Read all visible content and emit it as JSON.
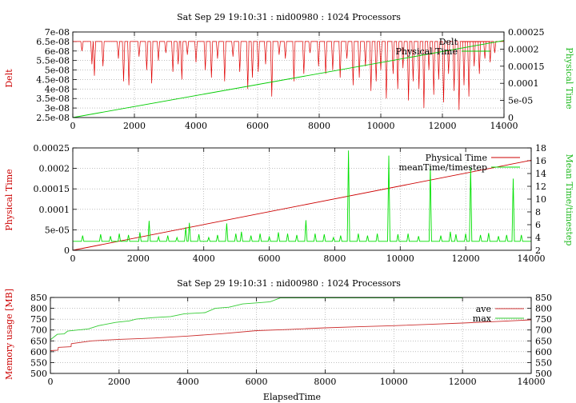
{
  "chart_data": [
    {
      "type": "line",
      "title": "Sat Sep 29 19:10:31 : nid00980 : 1024 Processors",
      "xlabel": "",
      "ylabel_left": "Delt",
      "ylabel_right": "Physical Time",
      "xlim": [
        0,
        14000
      ],
      "ylim_left": [
        2.5e-08,
        7e-08
      ],
      "ylim_right": [
        0,
        0.00025
      ],
      "xticks": [
        "0",
        "2000",
        "4000",
        "6000",
        "8000",
        "10000",
        "12000",
        "14000"
      ],
      "yticks_left": [
        "2.5e-08",
        "3e-08",
        "3.5e-08",
        "4e-08",
        "4.5e-08",
        "5e-08",
        "5.5e-08",
        "6e-08",
        "6.5e-08",
        "7e-08"
      ],
      "yticks_right": [
        "0",
        "5e-05",
        "0.0001",
        "0.00015",
        "0.0002",
        "0.00025"
      ],
      "grid": true,
      "legend": "top-right",
      "series": [
        {
          "name": "Delt",
          "color": "#e00000",
          "axis": "left",
          "baseline": 6.5e-08,
          "x_end": 14000,
          "dips": [
            [
              300,
              6e-08
            ],
            [
              620,
              5.3e-08
            ],
            [
              700,
              4.7e-08
            ],
            [
              980,
              5.2e-08
            ],
            [
              1480,
              5.6e-08
            ],
            [
              1650,
              4.4e-08
            ],
            [
              1820,
              4.2e-08
            ],
            [
              2150,
              5.7e-08
            ],
            [
              2400,
              5e-08
            ],
            [
              2560,
              4.3e-08
            ],
            [
              2780,
              5.5e-08
            ],
            [
              3020,
              5.9e-08
            ],
            [
              3250,
              4.9e-08
            ],
            [
              3420,
              5.3e-08
            ],
            [
              3540,
              4.5e-08
            ],
            [
              3720,
              5.8e-08
            ],
            [
              4000,
              5.4e-08
            ],
            [
              4300,
              5e-08
            ],
            [
              4500,
              4.6e-08
            ],
            [
              4700,
              5.6e-08
            ],
            [
              4930,
              4.4e-08
            ],
            [
              5200,
              5.7e-08
            ],
            [
              5420,
              4.9e-08
            ],
            [
              5680,
              4e-08
            ],
            [
              5830,
              4.6e-08
            ],
            [
              6020,
              4.9e-08
            ],
            [
              6260,
              5.3e-08
            ],
            [
              6460,
              3.6e-08
            ],
            [
              6700,
              5.8e-08
            ],
            [
              6900,
              5.6e-08
            ],
            [
              7180,
              4.4e-08
            ],
            [
              7500,
              4.8e-08
            ],
            [
              7700,
              5.9e-08
            ],
            [
              7980,
              5.2e-08
            ],
            [
              8210,
              4.8e-08
            ],
            [
              8440,
              5e-08
            ],
            [
              8680,
              4.6e-08
            ],
            [
              8900,
              5.6e-08
            ],
            [
              9100,
              4.2e-08
            ],
            [
              9300,
              4.6e-08
            ],
            [
              9500,
              5.2e-08
            ],
            [
              9680,
              3.9e-08
            ],
            [
              9850,
              4.4e-08
            ],
            [
              10000,
              5e-08
            ],
            [
              10180,
              3.5e-08
            ],
            [
              10400,
              4.8e-08
            ],
            [
              10550,
              4e-08
            ],
            [
              10720,
              5.1e-08
            ],
            [
              10900,
              3.4e-08
            ],
            [
              11050,
              4.4e-08
            ],
            [
              11240,
              4e-08
            ],
            [
              11400,
              3e-08
            ],
            [
              11560,
              5e-08
            ],
            [
              11720,
              3.7e-08
            ],
            [
              11880,
              4.5e-08
            ],
            [
              12040,
              3.3e-08
            ],
            [
              12200,
              4.8e-08
            ],
            [
              12380,
              3.9e-08
            ],
            [
              12540,
              2.9e-08
            ],
            [
              12700,
              4.2e-08
            ],
            [
              12860,
              3.6e-08
            ],
            [
              13030,
              5.2e-08
            ],
            [
              13200,
              4.8e-08
            ],
            [
              13380,
              5.6e-08
            ],
            [
              13550,
              5.4e-08
            ],
            [
              13700,
              5.9e-08
            ]
          ]
        },
        {
          "name": "Physical Time",
          "color": "#00cc00",
          "axis": "right",
          "points": [
            [
              0,
              0
            ],
            [
              14000,
              0.000225
            ]
          ]
        }
      ]
    },
    {
      "type": "line",
      "title": "",
      "xlabel": "",
      "ylabel_left": "Physical Time",
      "ylabel_right": "Mean Time/timestep",
      "xlim": [
        0,
        14000
      ],
      "ylim_left": [
        0,
        0.00025
      ],
      "ylim_right": [
        2,
        18
      ],
      "xticks": [
        "0",
        "2000",
        "4000",
        "6000",
        "8000",
        "10000",
        "12000",
        "14000"
      ],
      "yticks_left": [
        "0",
        "5e-05",
        "0.0001",
        "0.00015",
        "0.0002",
        "0.00025"
      ],
      "yticks_right": [
        "2",
        "4",
        "6",
        "8",
        "10",
        "12",
        "14",
        "16",
        "18"
      ],
      "grid": true,
      "legend": "top-right",
      "series": [
        {
          "name": "Physical Time",
          "color": "#cc0000",
          "axis": "left",
          "points": [
            [
              0,
              0
            ],
            [
              14000,
              0.00022
            ]
          ]
        },
        {
          "name": "meanTime/timestep",
          "color": "#00e000",
          "axis": "right",
          "baseline": 3.4,
          "x_end": 14000,
          "spikes": [
            [
              300,
              4.3
            ],
            [
              850,
              4.5
            ],
            [
              1150,
              4.2
            ],
            [
              1420,
              4.6
            ],
            [
              1700,
              4.4
            ],
            [
              2050,
              4.8
            ],
            [
              2330,
              6.6
            ],
            [
              2620,
              4.1
            ],
            [
              2900,
              4.3
            ],
            [
              3180,
              4.0
            ],
            [
              3450,
              5.6
            ],
            [
              3560,
              6.3
            ],
            [
              3850,
              4.5
            ],
            [
              4150,
              4.0
            ],
            [
              4420,
              4.4
            ],
            [
              4700,
              6.2
            ],
            [
              4980,
              4.6
            ],
            [
              5150,
              4.9
            ],
            [
              5440,
              4.3
            ],
            [
              5720,
              4.6
            ],
            [
              6000,
              4.1
            ],
            [
              6280,
              4.8
            ],
            [
              6560,
              4.6
            ],
            [
              6840,
              4.4
            ],
            [
              7120,
              6.7
            ],
            [
              7400,
              4.6
            ],
            [
              7680,
              4.5
            ],
            [
              7960,
              4.0
            ],
            [
              8180,
              4.3
            ],
            [
              8420,
              17.6
            ],
            [
              8720,
              4.6
            ],
            [
              9000,
              4.3
            ],
            [
              9300,
              4.6
            ],
            [
              9650,
              16.8
            ],
            [
              9930,
              4.5
            ],
            [
              10240,
              4.6
            ],
            [
              10560,
              4.2
            ],
            [
              10920,
              15.1
            ],
            [
              11240,
              4.3
            ],
            [
              11530,
              4.9
            ],
            [
              11700,
              4.5
            ],
            [
              12000,
              4.6
            ],
            [
              12150,
              15.0
            ],
            [
              12450,
              4.4
            ],
            [
              12700,
              4.7
            ],
            [
              13000,
              4.2
            ],
            [
              13250,
              4.4
            ],
            [
              13450,
              13.2
            ],
            [
              13700,
              4.4
            ]
          ]
        }
      ]
    },
    {
      "type": "line",
      "title": "Sat Sep 29 19:10:31 : nid00980 : 1024 Processors",
      "xlabel": "ElapsedTime",
      "ylabel_left": "Memory usage [MB]",
      "ylabel_right": "",
      "xlim": [
        0,
        14000
      ],
      "ylim_left": [
        500,
        850
      ],
      "ylim_right": [
        500,
        850
      ],
      "xticks": [
        "0",
        "2000",
        "4000",
        "6000",
        "8000",
        "10000",
        "12000",
        "14000"
      ],
      "yticks_left": [
        "500",
        "550",
        "600",
        "650",
        "700",
        "750",
        "800",
        "850"
      ],
      "yticks_right": [
        "500",
        "550",
        "600",
        "650",
        "700",
        "750",
        "800",
        "850"
      ],
      "grid": true,
      "legend": "top-right",
      "series": [
        {
          "name": "ave",
          "color": "#cc3030",
          "points": [
            [
              0,
              605
            ],
            [
              220,
              607
            ],
            [
              230,
              620
            ],
            [
              600,
              623
            ],
            [
              610,
              637
            ],
            [
              1200,
              650
            ],
            [
              2000,
              657
            ],
            [
              3000,
              663
            ],
            [
              4000,
              672
            ],
            [
              5000,
              683
            ],
            [
              6000,
              697
            ],
            [
              7000,
              703
            ],
            [
              8000,
              710
            ],
            [
              9000,
              715
            ],
            [
              10000,
              720
            ],
            [
              11000,
              726
            ],
            [
              12000,
              732
            ],
            [
              13000,
              739
            ],
            [
              14000,
              747
            ]
          ]
        },
        {
          "name": "max",
          "color": "#33cc33",
          "points": [
            [
              0,
              655
            ],
            [
              200,
              680
            ],
            [
              400,
              682
            ],
            [
              500,
              695
            ],
            [
              800,
              700
            ],
            [
              1100,
              705
            ],
            [
              1400,
              720
            ],
            [
              1900,
              735
            ],
            [
              2300,
              742
            ],
            [
              2500,
              750
            ],
            [
              3000,
              757
            ],
            [
              3500,
              762
            ],
            [
              3900,
              775
            ],
            [
              4500,
              780
            ],
            [
              4800,
              800
            ],
            [
              5200,
              805
            ],
            [
              5600,
              820
            ],
            [
              6000,
              825
            ],
            [
              6400,
              830
            ],
            [
              6700,
              848
            ],
            [
              12000,
              848
            ]
          ]
        }
      ]
    }
  ]
}
